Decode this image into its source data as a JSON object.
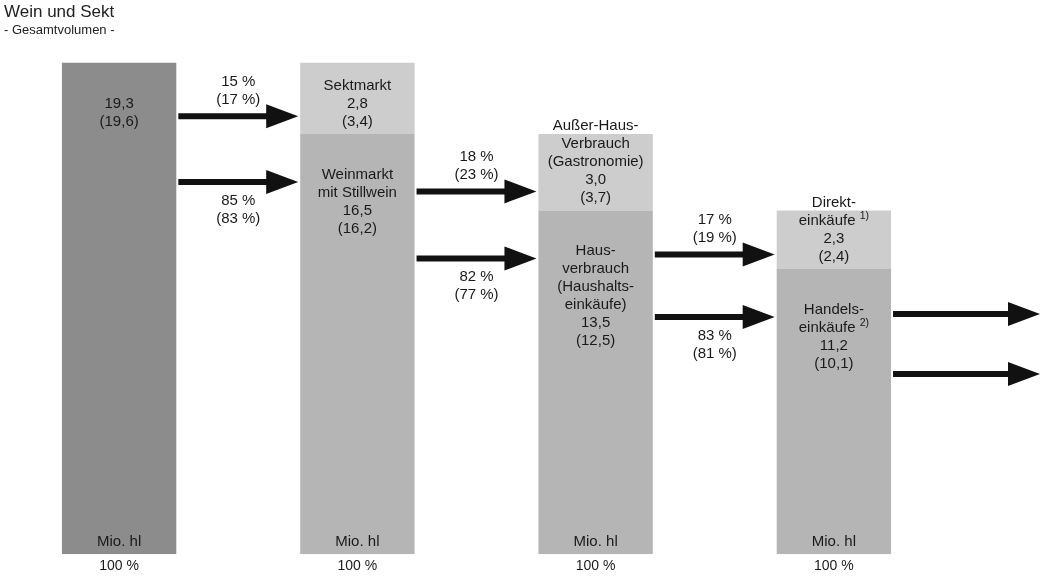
{
  "chart_data": {
    "type": "bar",
    "stacked": true,
    "title": "Wein und Sekt",
    "subtitle": "- Gesamtvolumen -",
    "ylabel": "Mio. hl",
    "categories": [
      "100 %",
      "100 %",
      "100 %",
      "100 %"
    ],
    "series": [
      {
        "colors": [
          "#8c8c8c",
          "#b5b5b5",
          "#b5b5b5",
          "#b5b5b5"
        ],
        "values": [
          19.3,
          16.5,
          13.5,
          11.2
        ],
        "value_labels": [
          "19,3\n(19,6)",
          "Weinmarkt\nmit Stillwein\n16,5\n(16,2)",
          "Haus-\nverbrauch\n(Haushalts-\neinkäufe)\n13,5\n(12,5)",
          "Handels-\neinkäufe $^{2)}$\n11,2\n(10,1)"
        ]
      },
      {
        "color": "#cdcdcd",
        "values": [
          null,
          2.8,
          3.0,
          2.3
        ],
        "value_labels": [
          null,
          "Sektmarkt\n2,8\n(3,4)",
          "Außer-Haus-\nVerbrauch\n(Gastronomie)\n3,0\n(3,7)",
          "Direkt-\neinkäufe $^{1)}$\n2,3\n(2,4)"
        ]
      }
    ],
    "annotations": [
      "15 %\n(17 %)",
      "85 %\n(83 %)",
      "18 %\n(23 %)",
      "82 %\n(77 %)",
      "17 %\n(19 %)",
      "83 %\n(81 %)"
    ]
  }
}
